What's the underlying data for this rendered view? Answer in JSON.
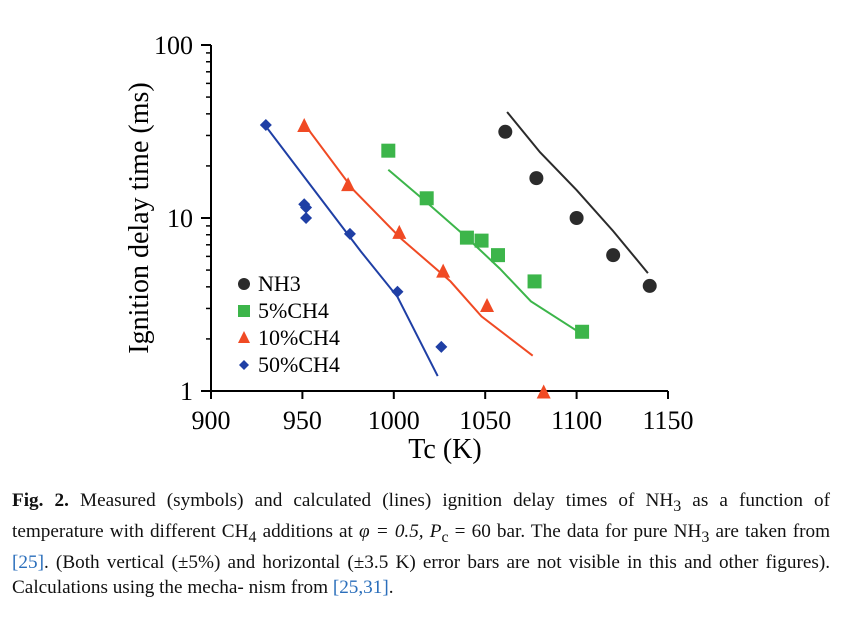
{
  "chart_data": {
    "type": "scatter",
    "title": "",
    "xlabel": "Tc (K)",
    "ylabel": "Ignition delay time (ms)",
    "xlim": [
      900,
      1150
    ],
    "ylim": [
      1,
      100
    ],
    "yscale": "log",
    "x_ticks": [
      900,
      950,
      1000,
      1050,
      1100,
      1150
    ],
    "y_ticks": [
      1,
      10,
      100
    ],
    "legend_position": "bottom-left",
    "series": [
      {
        "name": "NH3",
        "marker": "circle",
        "color": "#2b2b2b",
        "points": [
          [
            1061,
            31.5
          ],
          [
            1078,
            17
          ],
          [
            1100,
            10
          ],
          [
            1120,
            6.1
          ],
          [
            1140,
            4.05
          ]
        ],
        "line": [
          [
            1062,
            41
          ],
          [
            1080,
            24
          ],
          [
            1100,
            14.5
          ],
          [
            1120,
            8.4
          ],
          [
            1139,
            4.8
          ]
        ]
      },
      {
        "name": "5%CH4",
        "marker": "square",
        "color": "#3cb54a",
        "points": [
          [
            997,
            24.5
          ],
          [
            1018,
            13
          ],
          [
            1040,
            7.7
          ],
          [
            1048,
            7.4
          ],
          [
            1057,
            6.1
          ],
          [
            1077,
            4.3
          ],
          [
            1103,
            2.2
          ]
        ],
        "line": [
          [
            997,
            19
          ],
          [
            1018,
            12.3
          ],
          [
            1040,
            7.7
          ],
          [
            1058,
            5.1
          ],
          [
            1075,
            3.3
          ],
          [
            1101,
            2.2
          ]
        ]
      },
      {
        "name": "10%CH4",
        "marker": "triangle",
        "color": "#f04a24",
        "points": [
          [
            951,
            34
          ],
          [
            975,
            15.5
          ],
          [
            1003,
            8.2
          ],
          [
            1027,
            4.9
          ],
          [
            1051,
            3.1
          ],
          [
            1082,
            0.98
          ]
        ],
        "line": [
          [
            951,
            35
          ],
          [
            978,
            14.5
          ],
          [
            1004,
            7.6
          ],
          [
            1031,
            4.3
          ],
          [
            1048,
            2.7
          ],
          [
            1076,
            1.6
          ]
        ]
      },
      {
        "name": "50%CH4",
        "marker": "diamond",
        "color": "#1f3fa5",
        "points": [
          [
            930,
            34.5
          ],
          [
            951,
            12
          ],
          [
            952,
            11.5
          ],
          [
            952,
            10
          ],
          [
            976,
            8.1
          ],
          [
            1002,
            3.75
          ],
          [
            1026,
            1.8
          ]
        ],
        "line": [
          [
            929,
            35
          ],
          [
            955,
            15.2
          ],
          [
            982,
            6.4
          ],
          [
            1002,
            3.5
          ],
          [
            1024,
            1.22
          ]
        ]
      }
    ]
  },
  "caption": {
    "label": "Fig. 2.",
    "line1": "Measured (symbols) and calculated (lines) ignition delay times of NH",
    "line1_sub": "3",
    "line1_end": " as a",
    "line2": "function of temperature with different CH",
    "line2_sub": "4",
    "line2_mid": " additions at ",
    "phi_expr": "φ = 0.5, ",
    "pc_symbol": "P",
    "pc_sub": "c",
    "pc_expr": " = 60 bar. The",
    "line3_start": "data for pure NH",
    "line3_sub": "3",
    "line3_mid": " are taken from ",
    "ref1": "[25]",
    "line3_end": ". (Both vertical (±5%) and horizontal (±3.5 K)",
    "line4": "error bars are not visible in this and other figures). Calculations using the mecha-",
    "line5_start": "nism from ",
    "ref2": "[25,31]",
    "line5_end": "."
  }
}
